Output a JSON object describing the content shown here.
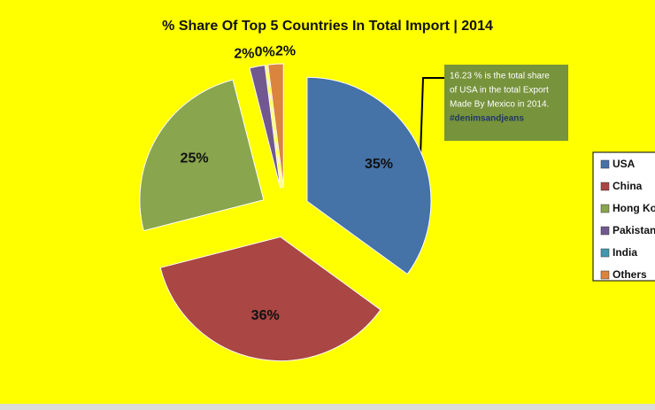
{
  "chart_data": {
    "type": "pie",
    "title": "% Share Of Top 5 Countries In Total Import | 2014",
    "categories": [
      "USA",
      "China",
      "Hong Kong",
      "Pakistan",
      "India",
      "Others"
    ],
    "values": [
      35,
      36,
      25,
      2,
      0,
      2
    ],
    "value_labels": [
      "35%",
      "36%",
      "25%",
      "2%",
      "0%",
      "2%"
    ],
    "colors": [
      "#4572a7",
      "#aa4643",
      "#89a54e",
      "#71588f",
      "#4198af",
      "#db843d"
    ],
    "legend": "right",
    "annotation": [
      "16.23 % is the total share",
      "of USA in the total Export",
      "Made By Mexico in 2014.",
      "#denimsandjeans"
    ]
  }
}
